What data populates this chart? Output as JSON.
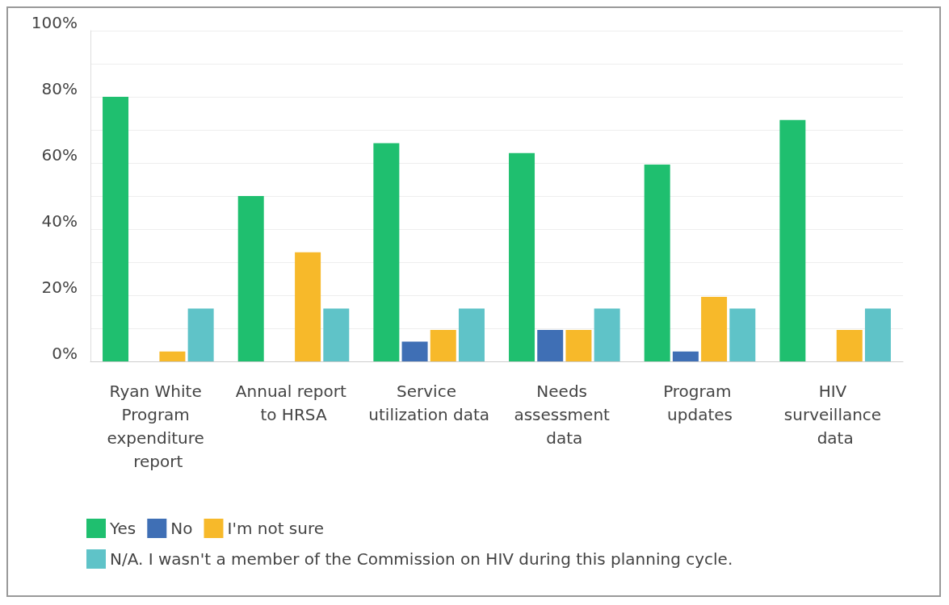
{
  "chart_data": {
    "type": "bar",
    "categories": [
      "Ryan White Program expenditure report",
      "Annual report to HRSA",
      "Service utilization data",
      "Needs assessment data",
      "Program updates",
      "HIV surveillance data"
    ],
    "series": [
      {
        "name": "Yes",
        "color": "#1fbf6f",
        "values": [
          80,
          50,
          66,
          63,
          59.5,
          73
        ]
      },
      {
        "name": "No",
        "color": "#3f6fb5",
        "values": [
          0,
          0,
          6,
          9.5,
          3,
          0
        ]
      },
      {
        "name": "I'm not sure",
        "color": "#f7b92a",
        "values": [
          3,
          33,
          9.5,
          9.5,
          19.5,
          9.5
        ]
      },
      {
        "name": "N/A. I wasn't a member of the Commission on HIV during this planning cycle.",
        "color": "#5fc3c8",
        "values": [
          16,
          16,
          16,
          16,
          16,
          16
        ]
      }
    ],
    "ylim": [
      0,
      100
    ],
    "yticks": [
      {
        "value": 0,
        "label": "0%"
      },
      {
        "value": 10,
        "label": null
      },
      {
        "value": 20,
        "label": "20%"
      },
      {
        "value": 30,
        "label": null
      },
      {
        "value": 40,
        "label": "40%"
      },
      {
        "value": 50,
        "label": null
      },
      {
        "value": 60,
        "label": "60%"
      },
      {
        "value": 70,
        "label": null
      },
      {
        "value": 80,
        "label": "80%"
      },
      {
        "value": 90,
        "label": null
      },
      {
        "value": 100,
        "label": "100%"
      }
    ],
    "grid": "y",
    "legend": "bottom left"
  }
}
